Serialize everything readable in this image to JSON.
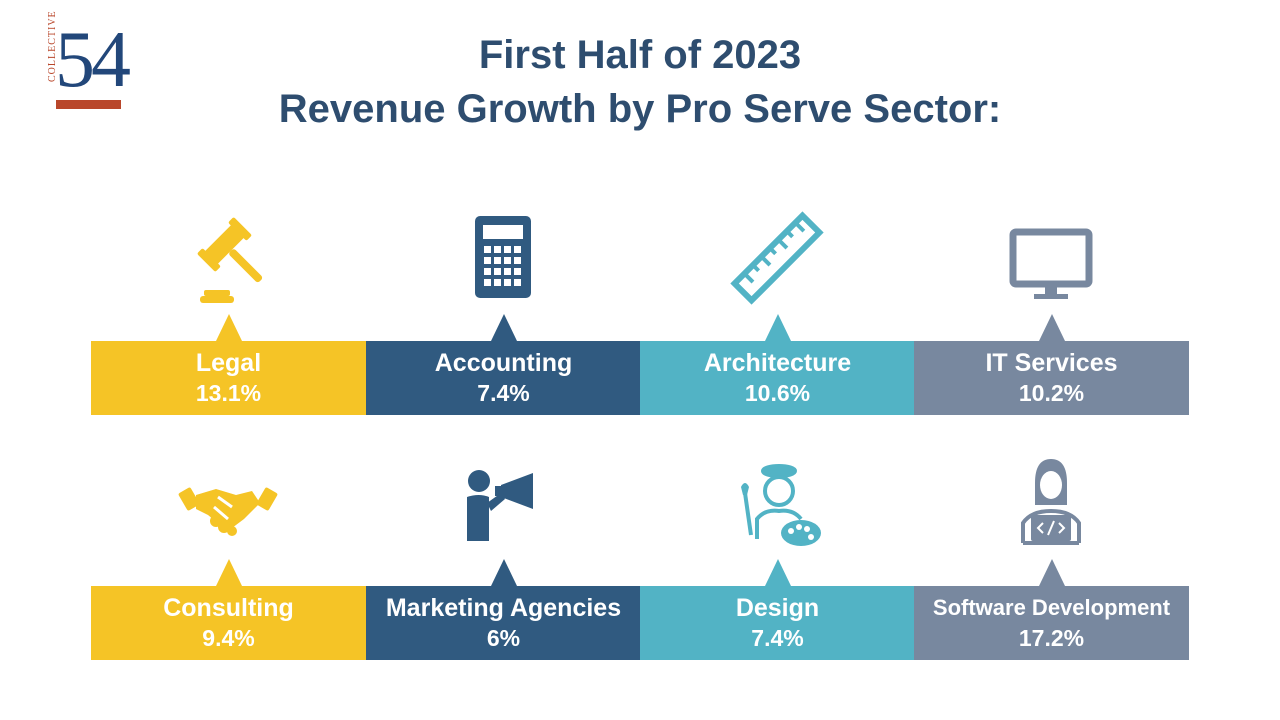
{
  "logo": {
    "word": "COLLECTIVE",
    "number": "54"
  },
  "title": {
    "line1": "First Half of 2023",
    "line2": "Revenue Growth by Pro Serve Sector:"
  },
  "colors": {
    "yellow": "#f5c426",
    "navy": "#305a80",
    "teal": "#52b3c5",
    "gray": "#78889f",
    "title": "#2e4d6f",
    "logo_red": "#b9472b"
  },
  "sectors": [
    {
      "name": "Legal",
      "growth": "13.1%",
      "icon": "gavel-icon",
      "color": "yellow"
    },
    {
      "name": "Accounting",
      "growth": "7.4%",
      "icon": "calculator-icon",
      "color": "navy"
    },
    {
      "name": "Architecture",
      "growth": "10.6%",
      "icon": "ruler-icon",
      "color": "teal"
    },
    {
      "name": "IT Services",
      "growth": "10.2%",
      "icon": "monitor-icon",
      "color": "gray"
    },
    {
      "name": "Consulting",
      "growth": "9.4%",
      "icon": "handshake-icon",
      "color": "yellow"
    },
    {
      "name": "Marketing Agencies",
      "growth": "6%",
      "icon": "megaphone-person-icon",
      "color": "navy"
    },
    {
      "name": "Design",
      "growth": "7.4%",
      "icon": "artist-palette-icon",
      "color": "teal"
    },
    {
      "name": "Software Development",
      "growth": "17.2%",
      "icon": "developer-laptop-icon",
      "color": "gray"
    }
  ]
}
